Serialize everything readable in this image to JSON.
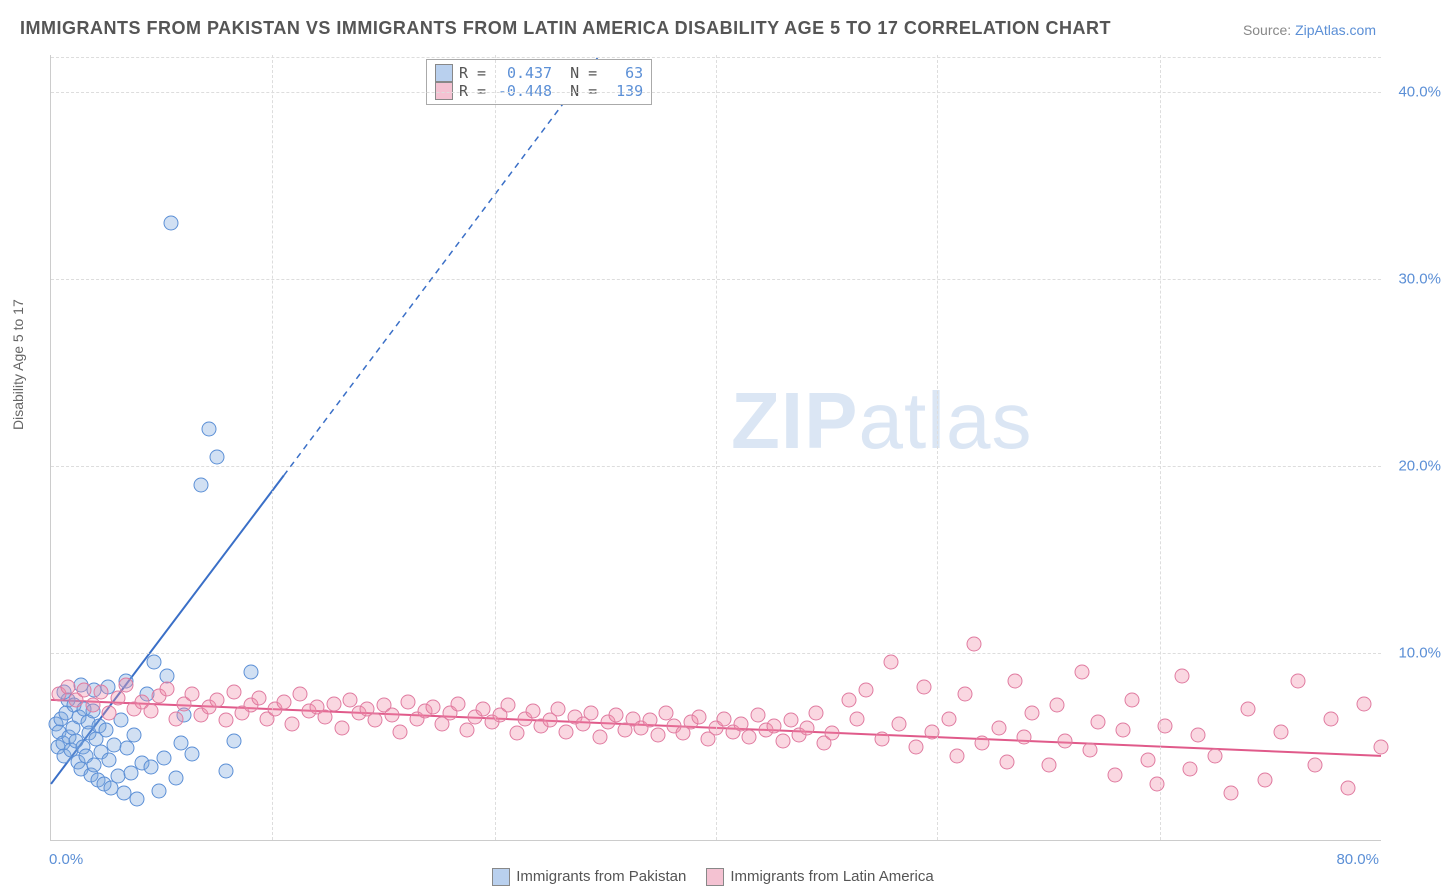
{
  "title": "IMMIGRANTS FROM PAKISTAN VS IMMIGRANTS FROM LATIN AMERICA DISABILITY AGE 5 TO 17 CORRELATION CHART",
  "source_label": "Source:",
  "source_link": "ZipAtlas.com",
  "ylabel": "Disability Age 5 to 17",
  "watermark_a": "ZIP",
  "watermark_b": "atlas",
  "chart": {
    "type": "scatter",
    "xlim": [
      0,
      80
    ],
    "ylim": [
      0,
      42
    ],
    "xtick_labels": [
      "0.0%",
      "80.0%"
    ],
    "xtick_pos": [
      0,
      80
    ],
    "xtick_minor": [
      13.3,
      26.7,
      40,
      53.3,
      66.7
    ],
    "ytick_labels": [
      "10.0%",
      "20.0%",
      "30.0%",
      "40.0%"
    ],
    "ytick_pos": [
      10,
      20,
      30,
      40
    ],
    "grid_color": "#dddddd",
    "background_color": "#ffffff",
    "series": [
      {
        "name": "Immigrants from Pakistan",
        "color_fill": "rgba(123,167,222,0.35)",
        "color_stroke": "#5b8fd6",
        "swatch": "#b9d0ee",
        "R": "0.437",
        "N": "63",
        "trend": {
          "x1": 0,
          "y1": 3.0,
          "x2": 14,
          "y2": 19.5,
          "dash_to_x": 33,
          "dash_to_y": 42,
          "color": "#3a6fc7",
          "width": 2
        },
        "points": [
          [
            0.3,
            6.2
          ],
          [
            0.4,
            5.0
          ],
          [
            0.5,
            5.8
          ],
          [
            0.6,
            6.5
          ],
          [
            0.7,
            5.2
          ],
          [
            0.8,
            4.5
          ],
          [
            0.9,
            6.8
          ],
          [
            1.0,
            7.5
          ],
          [
            1.1,
            5.5
          ],
          [
            1.2,
            4.8
          ],
          [
            1.3,
            6.0
          ],
          [
            1.4,
            7.2
          ],
          [
            1.5,
            5.3
          ],
          [
            1.6,
            4.2
          ],
          [
            1.7,
            6.6
          ],
          [
            1.8,
            3.8
          ],
          [
            1.9,
            5.0
          ],
          [
            2.0,
            7.0
          ],
          [
            2.1,
            4.5
          ],
          [
            2.2,
            6.3
          ],
          [
            2.3,
            5.7
          ],
          [
            2.4,
            3.5
          ],
          [
            2.5,
            6.9
          ],
          [
            2.6,
            4.0
          ],
          [
            2.7,
            5.4
          ],
          [
            2.8,
            3.2
          ],
          [
            2.9,
            6.1
          ],
          [
            3.0,
            4.7
          ],
          [
            3.2,
            3.0
          ],
          [
            3.3,
            5.9
          ],
          [
            3.5,
            4.3
          ],
          [
            3.6,
            2.8
          ],
          [
            3.8,
            5.1
          ],
          [
            4.0,
            3.4
          ],
          [
            4.2,
            6.4
          ],
          [
            4.4,
            2.5
          ],
          [
            4.6,
            4.9
          ],
          [
            4.8,
            3.6
          ],
          [
            5.0,
            5.6
          ],
          [
            5.2,
            2.2
          ],
          [
            5.5,
            4.1
          ],
          [
            5.8,
            7.8
          ],
          [
            6.0,
            3.9
          ],
          [
            6.2,
            9.5
          ],
          [
            6.5,
            2.6
          ],
          [
            6.8,
            4.4
          ],
          [
            7.0,
            8.8
          ],
          [
            7.2,
            33.0
          ],
          [
            7.5,
            3.3
          ],
          [
            7.8,
            5.2
          ],
          [
            8.0,
            6.7
          ],
          [
            8.5,
            4.6
          ],
          [
            9.0,
            19.0
          ],
          [
            9.5,
            22.0
          ],
          [
            10.0,
            20.5
          ],
          [
            10.5,
            3.7
          ],
          [
            11.0,
            5.3
          ],
          [
            12.0,
            9.0
          ],
          [
            4.5,
            8.5
          ],
          [
            3.4,
            8.2
          ],
          [
            2.6,
            8.0
          ],
          [
            1.8,
            8.3
          ],
          [
            0.8,
            7.9
          ]
        ]
      },
      {
        "name": "Immigrants from Latin America",
        "color_fill": "rgba(240,140,170,0.35)",
        "color_stroke": "#e07ba0",
        "swatch": "#f4c2d2",
        "R": "-0.448",
        "N": "139",
        "trend": {
          "x1": 0,
          "y1": 7.5,
          "x2": 80,
          "y2": 4.5,
          "color": "#e05a8a",
          "width": 2
        },
        "points": [
          [
            0.5,
            7.8
          ],
          [
            1.0,
            8.2
          ],
          [
            1.5,
            7.5
          ],
          [
            2.0,
            8.0
          ],
          [
            2.5,
            7.2
          ],
          [
            3.0,
            7.9
          ],
          [
            3.5,
            6.8
          ],
          [
            4.0,
            7.6
          ],
          [
            4.5,
            8.3
          ],
          [
            5.0,
            7.0
          ],
          [
            5.5,
            7.4
          ],
          [
            6.0,
            6.9
          ],
          [
            6.5,
            7.7
          ],
          [
            7.0,
            8.1
          ],
          [
            7.5,
            6.5
          ],
          [
            8.0,
            7.3
          ],
          [
            8.5,
            7.8
          ],
          [
            9.0,
            6.7
          ],
          [
            9.5,
            7.1
          ],
          [
            10.0,
            7.5
          ],
          [
            10.5,
            6.4
          ],
          [
            11.0,
            7.9
          ],
          [
            11.5,
            6.8
          ],
          [
            12.0,
            7.2
          ],
          [
            12.5,
            7.6
          ],
          [
            13.0,
            6.5
          ],
          [
            13.5,
            7.0
          ],
          [
            14.0,
            7.4
          ],
          [
            14.5,
            6.2
          ],
          [
            15.0,
            7.8
          ],
          [
            15.5,
            6.9
          ],
          [
            16.0,
            7.1
          ],
          [
            16.5,
            6.6
          ],
          [
            17.0,
            7.3
          ],
          [
            17.5,
            6.0
          ],
          [
            18.0,
            7.5
          ],
          [
            18.5,
            6.8
          ],
          [
            19.0,
            7.0
          ],
          [
            19.5,
            6.4
          ],
          [
            20.0,
            7.2
          ],
          [
            20.5,
            6.7
          ],
          [
            21.0,
            5.8
          ],
          [
            21.5,
            7.4
          ],
          [
            22.0,
            6.5
          ],
          [
            22.5,
            6.9
          ],
          [
            23.0,
            7.1
          ],
          [
            23.5,
            6.2
          ],
          [
            24.0,
            6.8
          ],
          [
            24.5,
            7.3
          ],
          [
            25.0,
            5.9
          ],
          [
            25.5,
            6.6
          ],
          [
            26.0,
            7.0
          ],
          [
            26.5,
            6.3
          ],
          [
            27.0,
            6.7
          ],
          [
            27.5,
            7.2
          ],
          [
            28.0,
            5.7
          ],
          [
            28.5,
            6.5
          ],
          [
            29.0,
            6.9
          ],
          [
            29.5,
            6.1
          ],
          [
            30.0,
            6.4
          ],
          [
            30.5,
            7.0
          ],
          [
            31.0,
            5.8
          ],
          [
            31.5,
            6.6
          ],
          [
            32.0,
            6.2
          ],
          [
            32.5,
            6.8
          ],
          [
            33.0,
            5.5
          ],
          [
            33.5,
            6.3
          ],
          [
            34.0,
            6.7
          ],
          [
            34.5,
            5.9
          ],
          [
            35.0,
            6.5
          ],
          [
            35.5,
            6.0
          ],
          [
            36.0,
            6.4
          ],
          [
            36.5,
            5.6
          ],
          [
            37.0,
            6.8
          ],
          [
            37.5,
            6.1
          ],
          [
            38.0,
            5.7
          ],
          [
            38.5,
            6.3
          ],
          [
            39.0,
            6.6
          ],
          [
            39.5,
            5.4
          ],
          [
            40.0,
            6.0
          ],
          [
            40.5,
            6.5
          ],
          [
            41.0,
            5.8
          ],
          [
            41.5,
            6.2
          ],
          [
            42.0,
            5.5
          ],
          [
            42.5,
            6.7
          ],
          [
            43.0,
            5.9
          ],
          [
            43.5,
            6.1
          ],
          [
            44.0,
            5.3
          ],
          [
            44.5,
            6.4
          ],
          [
            45.0,
            5.6
          ],
          [
            45.5,
            6.0
          ],
          [
            46.0,
            6.8
          ],
          [
            46.5,
            5.2
          ],
          [
            47.0,
            5.7
          ],
          [
            48.0,
            7.5
          ],
          [
            48.5,
            6.5
          ],
          [
            49.0,
            8.0
          ],
          [
            50.0,
            5.4
          ],
          [
            50.5,
            9.5
          ],
          [
            51.0,
            6.2
          ],
          [
            52.0,
            5.0
          ],
          [
            52.5,
            8.2
          ],
          [
            53.0,
            5.8
          ],
          [
            54.0,
            6.5
          ],
          [
            54.5,
            4.5
          ],
          [
            55.0,
            7.8
          ],
          [
            55.5,
            10.5
          ],
          [
            56.0,
            5.2
          ],
          [
            57.0,
            6.0
          ],
          [
            57.5,
            4.2
          ],
          [
            58.0,
            8.5
          ],
          [
            58.5,
            5.5
          ],
          [
            59.0,
            6.8
          ],
          [
            60.0,
            4.0
          ],
          [
            60.5,
            7.2
          ],
          [
            61.0,
            5.3
          ],
          [
            62.0,
            9.0
          ],
          [
            62.5,
            4.8
          ],
          [
            63.0,
            6.3
          ],
          [
            64.0,
            3.5
          ],
          [
            64.5,
            5.9
          ],
          [
            65.0,
            7.5
          ],
          [
            66.0,
            4.3
          ],
          [
            66.5,
            3.0
          ],
          [
            67.0,
            6.1
          ],
          [
            68.0,
            8.8
          ],
          [
            68.5,
            3.8
          ],
          [
            69.0,
            5.6
          ],
          [
            70.0,
            4.5
          ],
          [
            71.0,
            2.5
          ],
          [
            72.0,
            7.0
          ],
          [
            73.0,
            3.2
          ],
          [
            74.0,
            5.8
          ],
          [
            75.0,
            8.5
          ],
          [
            76.0,
            4.0
          ],
          [
            77.0,
            6.5
          ],
          [
            78.0,
            2.8
          ],
          [
            79.0,
            7.3
          ],
          [
            80.0,
            5.0
          ]
        ]
      }
    ]
  },
  "legend": {
    "r_label": "R =",
    "n_label": "N ="
  }
}
